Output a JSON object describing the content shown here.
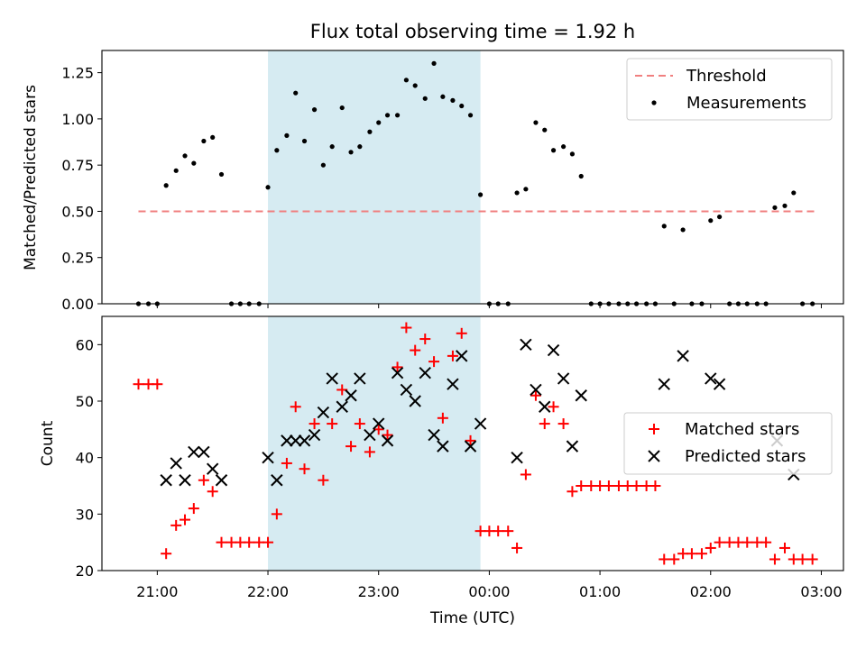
{
  "chart_data": [
    {
      "type": "scatter",
      "title": "Flux total observing time = 1.92 h",
      "xlabel": "",
      "ylabel": "Matched/Predicted stars",
      "xlim_hours": [
        20.5,
        27.2
      ],
      "ylim": [
        0,
        1.37
      ],
      "yticks": [
        "0.00",
        "0.25",
        "0.50",
        "0.75",
        "1.00",
        "1.25"
      ],
      "shaded_span_hours": [
        22.0,
        23.92
      ],
      "shade_color": "#add8e6",
      "legend_position": "top-right",
      "threshold": {
        "name": "Threshold",
        "value": 0.5,
        "x_range_hours": [
          20.83,
          26.95
        ],
        "color": "#f08080"
      },
      "series": [
        {
          "name": "Measurements",
          "color": "#000000",
          "marker": "dot",
          "points": [
            [
              20.83,
              0
            ],
            [
              20.92,
              0
            ],
            [
              21.0,
              0
            ],
            [
              21.08,
              0.64
            ],
            [
              21.17,
              0.72
            ],
            [
              21.25,
              0.8
            ],
            [
              21.33,
              0.76
            ],
            [
              21.42,
              0.88
            ],
            [
              21.5,
              0.9
            ],
            [
              21.58,
              0.7
            ],
            [
              21.67,
              0
            ],
            [
              21.75,
              0
            ],
            [
              21.83,
              0
            ],
            [
              21.92,
              0
            ],
            [
              22.0,
              0.63
            ],
            [
              22.08,
              0.83
            ],
            [
              22.17,
              0.91
            ],
            [
              22.25,
              1.14
            ],
            [
              22.33,
              0.88
            ],
            [
              22.42,
              1.05
            ],
            [
              22.5,
              0.75
            ],
            [
              22.58,
              0.85
            ],
            [
              22.67,
              1.06
            ],
            [
              22.75,
              0.82
            ],
            [
              22.83,
              0.85
            ],
            [
              22.92,
              0.93
            ],
            [
              23.0,
              0.98
            ],
            [
              23.08,
              1.02
            ],
            [
              23.17,
              1.02
            ],
            [
              23.25,
              1.21
            ],
            [
              23.33,
              1.18
            ],
            [
              23.42,
              1.11
            ],
            [
              23.5,
              1.3
            ],
            [
              23.58,
              1.12
            ],
            [
              23.67,
              1.1
            ],
            [
              23.75,
              1.07
            ],
            [
              23.83,
              1.02
            ],
            [
              23.92,
              0.59
            ],
            [
              24.0,
              0
            ],
            [
              24.08,
              0
            ],
            [
              24.17,
              0
            ],
            [
              24.25,
              0.6
            ],
            [
              24.33,
              0.62
            ],
            [
              24.42,
              0.98
            ],
            [
              24.5,
              0.94
            ],
            [
              24.58,
              0.83
            ],
            [
              24.67,
              0.85
            ],
            [
              24.75,
              0.81
            ],
            [
              24.83,
              0.69
            ],
            [
              24.92,
              0
            ],
            [
              25.0,
              0
            ],
            [
              25.08,
              0
            ],
            [
              25.17,
              0
            ],
            [
              25.25,
              0
            ],
            [
              25.33,
              0
            ],
            [
              25.42,
              0
            ],
            [
              25.5,
              0
            ],
            [
              25.58,
              0.42
            ],
            [
              25.67,
              0
            ],
            [
              25.75,
              0.4
            ],
            [
              25.83,
              0
            ],
            [
              25.92,
              0
            ],
            [
              26.0,
              0.45
            ],
            [
              26.08,
              0.47
            ],
            [
              26.17,
              0
            ],
            [
              26.25,
              0
            ],
            [
              26.33,
              0
            ],
            [
              26.42,
              0
            ],
            [
              26.5,
              0
            ],
            [
              26.58,
              0.52
            ],
            [
              26.67,
              0.53
            ],
            [
              26.75,
              0.6
            ],
            [
              26.83,
              0
            ],
            [
              26.92,
              0
            ]
          ]
        }
      ]
    },
    {
      "type": "scatter",
      "title": "",
      "xlabel": "Time (UTC)",
      "ylabel": "Count",
      "xlim_hours": [
        20.5,
        27.2
      ],
      "ylim": [
        20,
        65
      ],
      "yticks": [
        "20",
        "30",
        "40",
        "50",
        "60"
      ],
      "xticks_hours": [
        21,
        22,
        23,
        24,
        25,
        26,
        27
      ],
      "xtick_labels": [
        "21:00",
        "22:00",
        "23:00",
        "00:00",
        "01:00",
        "02:00",
        "03:00"
      ],
      "shaded_span_hours": [
        22.0,
        23.92
      ],
      "legend_position": "right",
      "series": [
        {
          "name": "Matched stars",
          "color": "#ff0000",
          "marker": "plus",
          "points": [
            [
              20.83,
              53
            ],
            [
              20.92,
              53
            ],
            [
              21.0,
              53
            ],
            [
              21.08,
              23
            ],
            [
              21.17,
              28
            ],
            [
              21.25,
              29
            ],
            [
              21.33,
              31
            ],
            [
              21.42,
              36
            ],
            [
              21.5,
              34
            ],
            [
              21.58,
              25
            ],
            [
              21.67,
              25
            ],
            [
              21.75,
              25
            ],
            [
              21.83,
              25
            ],
            [
              21.92,
              25
            ],
            [
              22.0,
              25
            ],
            [
              22.08,
              30
            ],
            [
              22.17,
              39
            ],
            [
              22.25,
              49
            ],
            [
              22.33,
              38
            ],
            [
              22.42,
              46
            ],
            [
              22.5,
              36
            ],
            [
              22.58,
              46
            ],
            [
              22.67,
              52
            ],
            [
              22.75,
              42
            ],
            [
              22.83,
              46
            ],
            [
              22.92,
              41
            ],
            [
              23.0,
              45
            ],
            [
              23.08,
              44
            ],
            [
              23.17,
              56
            ],
            [
              23.25,
              63
            ],
            [
              23.33,
              59
            ],
            [
              23.42,
              61
            ],
            [
              23.5,
              57
            ],
            [
              23.58,
              47
            ],
            [
              23.67,
              58
            ],
            [
              23.75,
              62
            ],
            [
              23.83,
              43
            ],
            [
              23.92,
              27
            ],
            [
              24.0,
              27
            ],
            [
              24.08,
              27
            ],
            [
              24.17,
              27
            ],
            [
              24.25,
              24
            ],
            [
              24.33,
              37
            ],
            [
              24.42,
              51
            ],
            [
              24.5,
              46
            ],
            [
              24.58,
              49
            ],
            [
              24.67,
              46
            ],
            [
              24.75,
              34
            ],
            [
              24.83,
              35
            ],
            [
              24.92,
              35
            ],
            [
              25.0,
              35
            ],
            [
              25.08,
              35
            ],
            [
              25.17,
              35
            ],
            [
              25.25,
              35
            ],
            [
              25.33,
              35
            ],
            [
              25.42,
              35
            ],
            [
              25.5,
              35
            ],
            [
              25.58,
              22
            ],
            [
              25.67,
              22
            ],
            [
              25.75,
              23
            ],
            [
              25.83,
              23
            ],
            [
              25.92,
              23
            ],
            [
              26.0,
              24
            ],
            [
              26.08,
              25
            ],
            [
              26.17,
              25
            ],
            [
              26.25,
              25
            ],
            [
              26.33,
              25
            ],
            [
              26.42,
              25
            ],
            [
              26.5,
              25
            ],
            [
              26.58,
              22
            ],
            [
              26.67,
              24
            ],
            [
              26.75,
              22
            ],
            [
              26.83,
              22
            ],
            [
              26.92,
              22
            ]
          ]
        },
        {
          "name": "Predicted stars",
          "color": "#000000",
          "marker": "x",
          "points": [
            [
              21.08,
              36
            ],
            [
              21.17,
              39
            ],
            [
              21.25,
              36
            ],
            [
              21.33,
              41
            ],
            [
              21.42,
              41
            ],
            [
              21.5,
              38
            ],
            [
              21.58,
              36
            ],
            [
              22.0,
              40
            ],
            [
              22.08,
              36
            ],
            [
              22.17,
              43
            ],
            [
              22.25,
              43
            ],
            [
              22.33,
              43
            ],
            [
              22.42,
              44
            ],
            [
              22.5,
              48
            ],
            [
              22.58,
              54
            ],
            [
              22.67,
              49
            ],
            [
              22.75,
              51
            ],
            [
              22.83,
              54
            ],
            [
              22.92,
              44
            ],
            [
              23.0,
              46
            ],
            [
              23.08,
              43
            ],
            [
              23.17,
              55
            ],
            [
              23.25,
              52
            ],
            [
              23.33,
              50
            ],
            [
              23.42,
              55
            ],
            [
              23.5,
              44
            ],
            [
              23.58,
              42
            ],
            [
              23.67,
              53
            ],
            [
              23.75,
              58
            ],
            [
              23.83,
              42
            ],
            [
              23.92,
              46
            ],
            [
              24.25,
              40
            ],
            [
              24.33,
              60
            ],
            [
              24.42,
              52
            ],
            [
              24.5,
              49
            ],
            [
              24.58,
              59
            ],
            [
              24.67,
              54
            ],
            [
              24.75,
              42
            ],
            [
              24.83,
              51
            ],
            [
              25.58,
              53
            ],
            [
              25.75,
              58
            ],
            [
              26.0,
              54
            ],
            [
              26.08,
              53
            ],
            [
              26.6,
              43
            ],
            [
              26.75,
              37
            ]
          ]
        }
      ]
    }
  ]
}
